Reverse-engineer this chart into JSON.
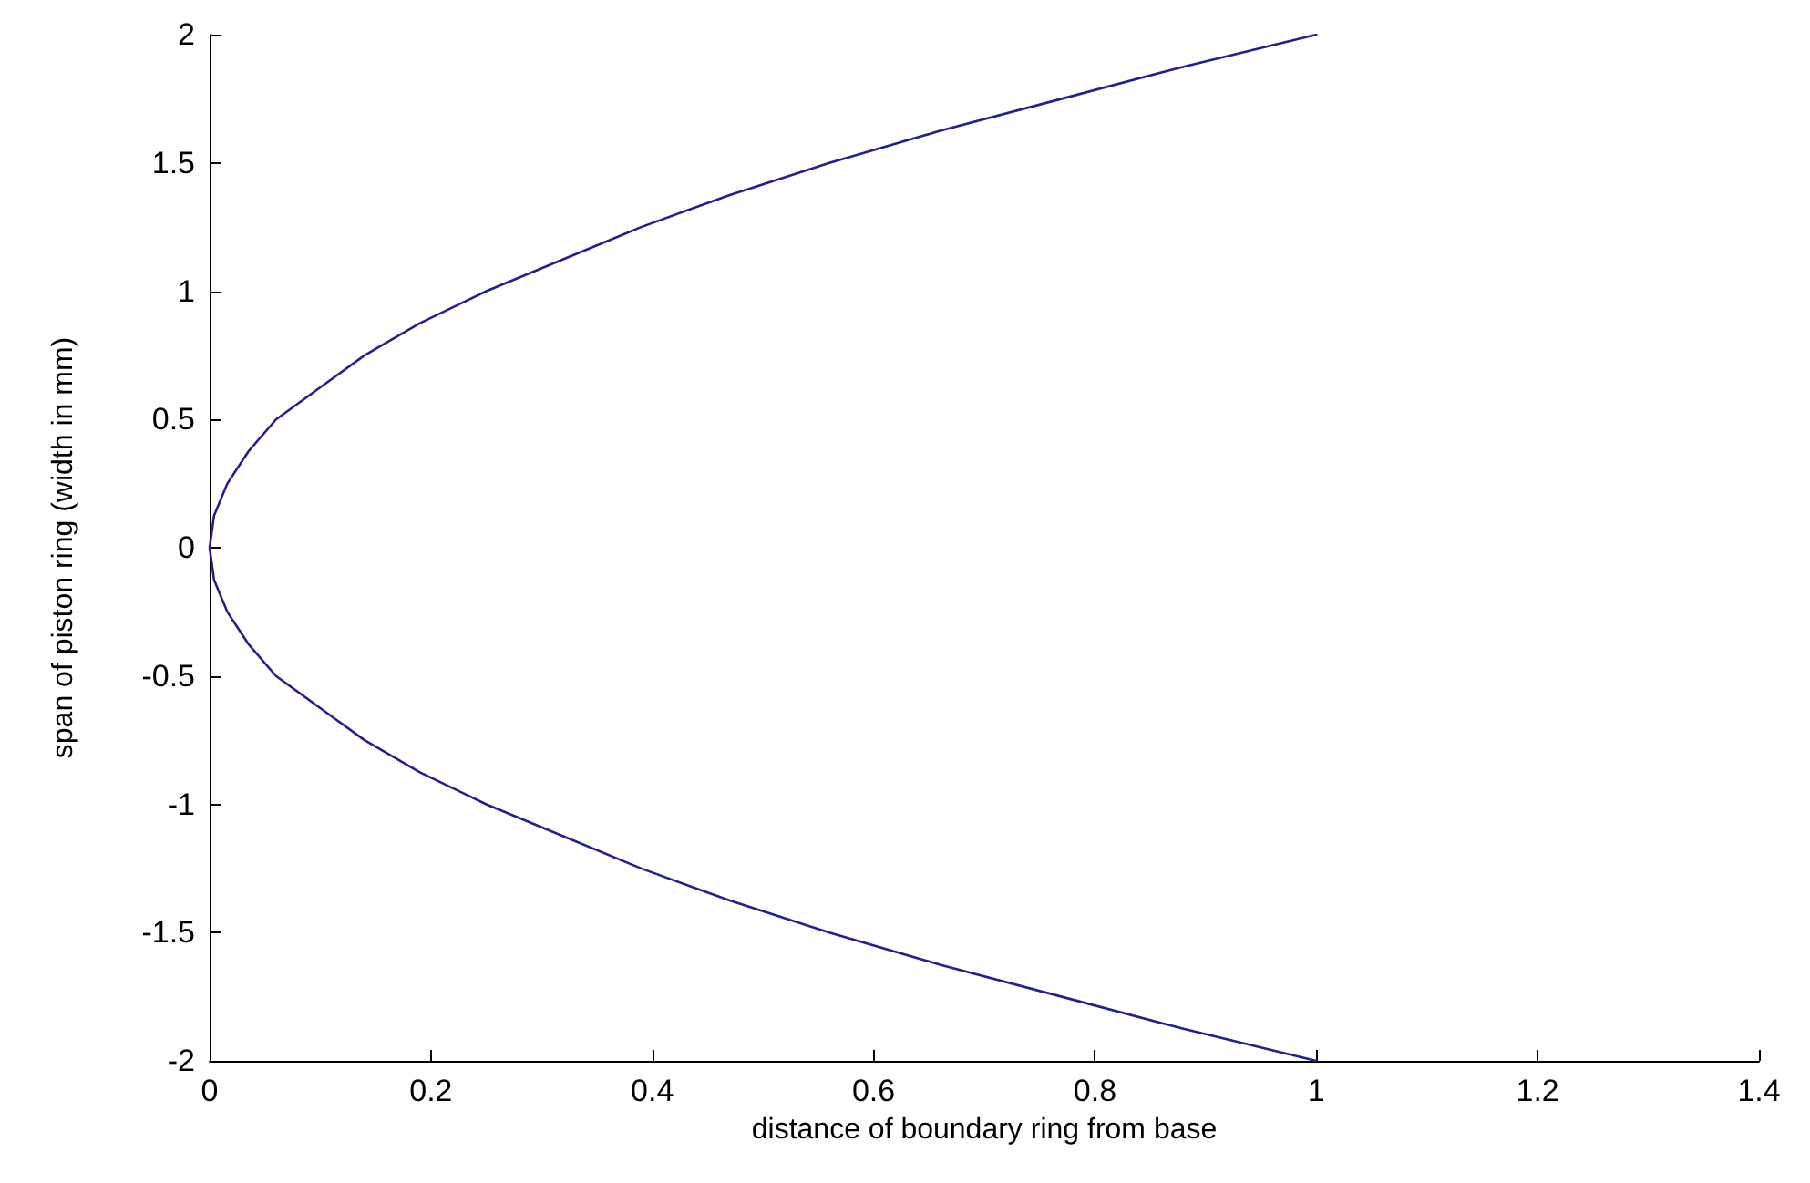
{
  "chart_data": {
    "type": "line",
    "xlabel": "distance of boundary ring from base",
    "ylabel": "span of piston ring (width in mm)",
    "x": [
      1,
      0.88,
      0.77,
      0.66,
      0.56,
      0.47,
      0.39,
      0.32,
      0.25,
      0.19,
      0.14,
      0.1,
      0.06,
      0.035,
      0.016,
      0.004,
      0,
      0.004,
      0.016,
      0.035,
      0.06,
      0.1,
      0.14,
      0.19,
      0.25,
      0.32,
      0.39,
      0.47,
      0.56,
      0.66,
      0.77,
      0.88,
      1
    ],
    "series": [
      {
        "color": "#22228a",
        "values": [
          -2,
          -1.875,
          -1.75,
          -1.625,
          -1.5,
          -1.375,
          -1.25,
          -1.125,
          -1,
          -0.875,
          -0.75,
          -0.625,
          -0.5,
          -0.375,
          -0.25,
          -0.125,
          0,
          0.125,
          0.25,
          0.375,
          0.5,
          0.625,
          0.75,
          0.875,
          1,
          1.125,
          1.25,
          1.375,
          1.5,
          1.625,
          1.75,
          1.875,
          2
        ]
      }
    ],
    "xlim": [
      0,
      1.4
    ],
    "xticks": [
      0,
      0.2,
      0.4,
      0.6,
      0.8,
      1,
      1.2,
      1.4
    ],
    "ylim": [
      -2,
      2
    ],
    "yticks": [
      -2,
      -1.5,
      -1,
      -0.5,
      0,
      0.5,
      1,
      1.5,
      2
    ],
    "marker": "none",
    "line_style": "solid"
  }
}
